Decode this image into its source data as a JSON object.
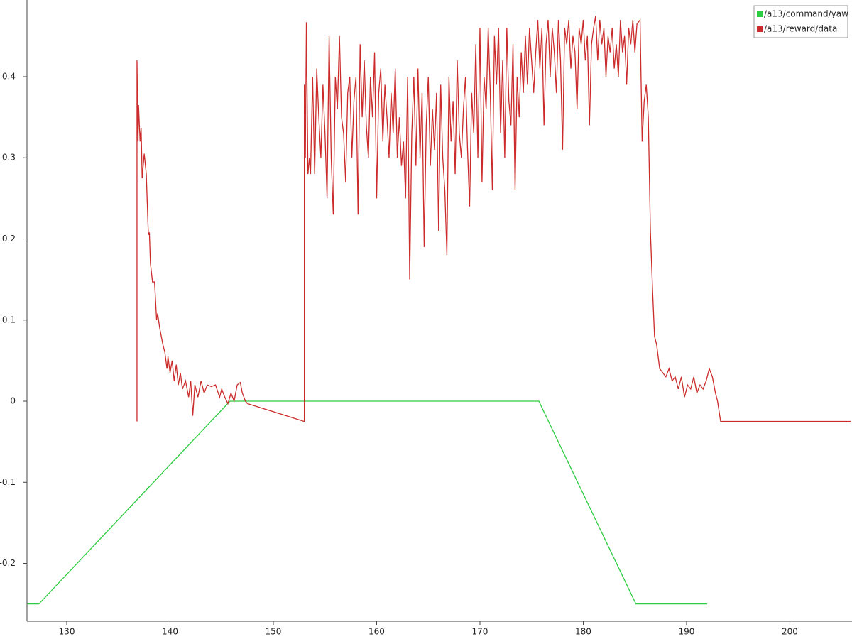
{
  "chart_data": {
    "type": "line",
    "xlim": [
      126.15,
      205.88
    ],
    "ylim": [
      -0.2713,
      0.4945
    ],
    "xticks": [
      130,
      140,
      150,
      160,
      170,
      180,
      190,
      200
    ],
    "yticks": [
      -0.2,
      -0.1,
      0,
      0.1,
      0.2,
      0.3,
      0.4
    ],
    "legend": "upper right",
    "series": [
      {
        "name": "/a13/command/yaw",
        "color": "#2ecc40",
        "x": [
          126.2,
          127.3,
          145.8,
          175.7,
          185.1,
          192.0
        ],
        "values": [
          -0.25,
          -0.25,
          0,
          0,
          -0.25,
          -0.25
        ]
      },
      {
        "name": "/a13/reward/data",
        "color": "#cc2b2b",
        "x": [
          136.8,
          136.8,
          136.9,
          136.95,
          137.1,
          137.2,
          137.3,
          137.5,
          137.7,
          137.9,
          138.0,
          138.1,
          138.3,
          138.5,
          138.7,
          138.8,
          139.0,
          139.3,
          139.5,
          139.7,
          139.8,
          140.0,
          140.2,
          140.4,
          140.6,
          140.8,
          141.0,
          141.2,
          141.5,
          141.8,
          142.0,
          142.2,
          142.4,
          142.7,
          143.0,
          143.3,
          143.6,
          144.0,
          144.4,
          144.8,
          145.0,
          145.3,
          145.6,
          145.9,
          146.2,
          146.5,
          146.8,
          147.0,
          147.3,
          147.5,
          153.0,
          153.0,
          153.1,
          153.2,
          153.35,
          153.5,
          153.6,
          153.8,
          154.0,
          154.2,
          154.4,
          154.6,
          154.8,
          155.0,
          155.2,
          155.4,
          155.6,
          155.8,
          156.0,
          156.2,
          156.4,
          156.6,
          156.8,
          157.0,
          157.2,
          157.4,
          157.6,
          157.8,
          158.0,
          158.2,
          158.4,
          158.6,
          158.8,
          159.0,
          159.2,
          159.4,
          159.6,
          159.8,
          160.0,
          160.2,
          160.4,
          160.6,
          160.8,
          161.0,
          161.2,
          161.4,
          161.6,
          161.8,
          162.0,
          162.2,
          162.4,
          162.6,
          162.8,
          163.0,
          163.2,
          163.4,
          163.6,
          163.8,
          164.0,
          164.2,
          164.4,
          164.6,
          164.8,
          165.0,
          165.2,
          165.4,
          165.6,
          165.8,
          166.0,
          166.2,
          166.4,
          166.6,
          166.8,
          167.0,
          167.2,
          167.4,
          167.6,
          167.8,
          168.0,
          168.2,
          168.4,
          168.6,
          168.8,
          169.0,
          169.2,
          169.4,
          169.6,
          169.8,
          170.0,
          170.2,
          170.4,
          170.6,
          170.8,
          171.0,
          171.2,
          171.4,
          171.6,
          171.8,
          172.0,
          172.2,
          172.4,
          172.6,
          172.8,
          173.0,
          173.2,
          173.4,
          173.6,
          173.8,
          174.0,
          174.2,
          174.4,
          174.6,
          174.8,
          175.0,
          175.2,
          175.4,
          175.6,
          175.8,
          176.0,
          176.2,
          176.4,
          176.6,
          176.8,
          177.0,
          177.2,
          177.4,
          177.6,
          177.8,
          178.0,
          178.2,
          178.4,
          178.6,
          178.8,
          179.0,
          179.2,
          179.4,
          179.6,
          179.8,
          180.0,
          180.2,
          180.4,
          180.6,
          180.8,
          181.0,
          181.2,
          181.4,
          181.6,
          181.8,
          182.0,
          182.2,
          182.4,
          182.6,
          182.8,
          183.0,
          183.2,
          183.4,
          183.6,
          183.8,
          184.0,
          184.2,
          184.4,
          184.6,
          184.8,
          185.0,
          185.2,
          185.5,
          185.7,
          185.9,
          186.1,
          186.3,
          186.5,
          186.7,
          186.9,
          187.1,
          187.4,
          187.7,
          188.0,
          188.3,
          188.6,
          188.9,
          189.2,
          189.5,
          189.8,
          190.1,
          190.4,
          190.7,
          191.0,
          191.3,
          191.6,
          191.9,
          192.2,
          192.5,
          192.8,
          193.0,
          193.3,
          205.9
        ],
        "values": [
          -0.025,
          0.42,
          0.32,
          0.365,
          0.32,
          0.337,
          0.275,
          0.305,
          0.28,
          0.205,
          0.208,
          0.17,
          0.147,
          0.147,
          0.1,
          0.108,
          0.09,
          0.07,
          0.06,
          0.04,
          0.055,
          0.035,
          0.05,
          0.025,
          0.045,
          0.02,
          0.035,
          0.015,
          0.025,
          0.005,
          0.025,
          -0.018,
          0.02,
          0.005,
          0.025,
          0.01,
          0.02,
          0.018,
          0.02,
          0.005,
          0.015,
          0.005,
          -0.003,
          0.01,
          0.0,
          0.02,
          0.023,
          0.01,
          0.0,
          -0.003,
          -0.025,
          0.39,
          0.3,
          0.467,
          0.28,
          0.3,
          0.28,
          0.4,
          0.28,
          0.41,
          0.35,
          0.3,
          0.39,
          0.33,
          0.25,
          0.45,
          0.3,
          0.23,
          0.4,
          0.36,
          0.45,
          0.35,
          0.33,
          0.27,
          0.38,
          0.4,
          0.3,
          0.37,
          0.4,
          0.23,
          0.44,
          0.35,
          0.42,
          0.34,
          0.3,
          0.4,
          0.35,
          0.43,
          0.25,
          0.38,
          0.41,
          0.32,
          0.39,
          0.35,
          0.3,
          0.38,
          0.33,
          0.41,
          0.3,
          0.35,
          0.29,
          0.32,
          0.25,
          0.4,
          0.15,
          0.33,
          0.4,
          0.29,
          0.41,
          0.3,
          0.38,
          0.19,
          0.34,
          0.4,
          0.29,
          0.36,
          0.31,
          0.38,
          0.21,
          0.39,
          0.3,
          0.26,
          0.18,
          0.4,
          0.32,
          0.37,
          0.28,
          0.42,
          0.33,
          0.3,
          0.36,
          0.4,
          0.31,
          0.24,
          0.38,
          0.33,
          0.44,
          0.3,
          0.46,
          0.27,
          0.4,
          0.36,
          0.46,
          0.38,
          0.26,
          0.45,
          0.39,
          0.46,
          0.33,
          0.42,
          0.3,
          0.46,
          0.37,
          0.34,
          0.44,
          0.26,
          0.4,
          0.35,
          0.43,
          0.38,
          0.45,
          0.39,
          0.46,
          0.42,
          0.38,
          0.43,
          0.47,
          0.41,
          0.46,
          0.34,
          0.44,
          0.47,
          0.4,
          0.46,
          0.43,
          0.38,
          0.47,
          0.42,
          0.31,
          0.46,
          0.44,
          0.47,
          0.41,
          0.45,
          0.43,
          0.36,
          0.46,
          0.44,
          0.47,
          0.42,
          0.45,
          0.34,
          0.44,
          0.46,
          0.475,
          0.42,
          0.47,
          0.44,
          0.46,
          0.4,
          0.45,
          0.43,
          0.46,
          0.41,
          0.44,
          0.4,
          0.47,
          0.43,
          0.45,
          0.39,
          0.46,
          0.44,
          0.47,
          0.43,
          0.465,
          0.47,
          0.32,
          0.37,
          0.39,
          0.35,
          0.21,
          0.14,
          0.08,
          0.07,
          0.04,
          0.035,
          0.03,
          0.04,
          0.025,
          0.03,
          0.015,
          0.03,
          0.005,
          0.02,
          0.015,
          0.03,
          0.01,
          0.02,
          0.015,
          0.025,
          0.04,
          0.03,
          0.01,
          0.0,
          -0.025,
          -0.025
        ]
      }
    ]
  }
}
